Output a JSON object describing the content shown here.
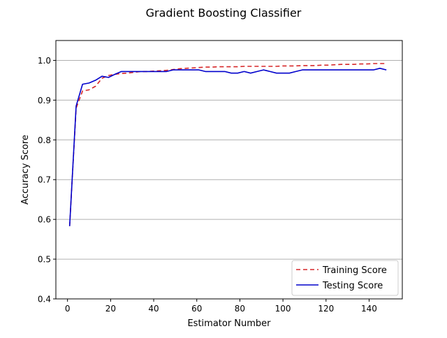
{
  "chart_data": {
    "type": "line",
    "title": "Gradient Boosting Classifier",
    "xlabel": "Estimator Number",
    "ylabel": "Accuracy Score",
    "xlim": [
      -5.4,
      155.4
    ],
    "ylim": [
      0.4,
      1.05
    ],
    "xticks": [
      0,
      20,
      40,
      60,
      80,
      100,
      120,
      140
    ],
    "yticks": [
      0.4,
      0.5,
      0.6,
      0.7,
      0.8,
      0.9,
      1.0
    ],
    "xtick_labels": [
      "0",
      "20",
      "40",
      "60",
      "80",
      "100",
      "120",
      "140"
    ],
    "ytick_labels": [
      "0.4",
      "0.5",
      "0.6",
      "0.7",
      "0.8",
      "0.9",
      "1.0"
    ],
    "grid": "horizontal",
    "legend": "lower-right",
    "series": [
      {
        "name": "Training Score",
        "color": "#d62728",
        "style": "dashed",
        "x": [
          1,
          4,
          7,
          10,
          13,
          16,
          19,
          22,
          25,
          28,
          31,
          34,
          37,
          40,
          43,
          46,
          49,
          52,
          55,
          58,
          61,
          64,
          67,
          70,
          73,
          76,
          79,
          82,
          85,
          88,
          91,
          94,
          97,
          100,
          103,
          106,
          109,
          112,
          115,
          118,
          121,
          124,
          127,
          130,
          133,
          136,
          139,
          142,
          145,
          148
        ],
        "y": [
          0.583,
          0.88,
          0.923,
          0.926,
          0.935,
          0.955,
          0.962,
          0.965,
          0.967,
          0.968,
          0.97,
          0.972,
          0.972,
          0.973,
          0.974,
          0.975,
          0.977,
          0.979,
          0.98,
          0.981,
          0.982,
          0.983,
          0.983,
          0.984,
          0.984,
          0.984,
          0.984,
          0.985,
          0.985,
          0.985,
          0.985,
          0.985,
          0.985,
          0.986,
          0.986,
          0.986,
          0.987,
          0.987,
          0.987,
          0.988,
          0.988,
          0.989,
          0.99,
          0.99,
          0.99,
          0.991,
          0.991,
          0.992,
          0.992,
          0.992
        ]
      },
      {
        "name": "Testing Score",
        "color": "#0000cc",
        "style": "solid",
        "x": [
          1,
          4,
          7,
          10,
          13,
          16,
          19,
          22,
          25,
          28,
          31,
          34,
          37,
          40,
          43,
          46,
          49,
          52,
          55,
          58,
          61,
          64,
          67,
          70,
          73,
          76,
          79,
          82,
          85,
          88,
          91,
          94,
          97,
          100,
          103,
          106,
          109,
          112,
          115,
          118,
          121,
          124,
          127,
          130,
          133,
          136,
          139,
          142,
          145,
          148
        ],
        "y": [
          0.583,
          0.885,
          0.94,
          0.943,
          0.95,
          0.96,
          0.957,
          0.965,
          0.972,
          0.972,
          0.972,
          0.972,
          0.972,
          0.972,
          0.972,
          0.972,
          0.976,
          0.976,
          0.976,
          0.976,
          0.976,
          0.972,
          0.972,
          0.972,
          0.972,
          0.968,
          0.968,
          0.972,
          0.968,
          0.972,
          0.976,
          0.972,
          0.968,
          0.968,
          0.968,
          0.972,
          0.976,
          0.976,
          0.976,
          0.976,
          0.976,
          0.976,
          0.976,
          0.976,
          0.976,
          0.976,
          0.976,
          0.976,
          0.98,
          0.976
        ]
      }
    ]
  }
}
